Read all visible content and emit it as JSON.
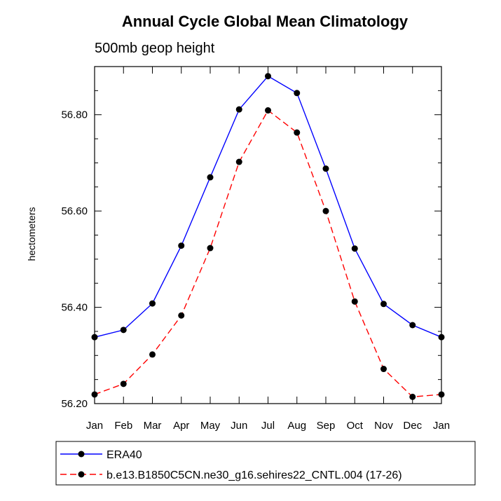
{
  "chart_data": {
    "type": "line",
    "title": "Annual Cycle Global Mean Climatology",
    "subtitle": "500mb geop height",
    "xlabel": "",
    "ylabel": "hectometers",
    "categories": [
      "Jan",
      "Feb",
      "Mar",
      "Apr",
      "May",
      "Jun",
      "Jul",
      "Aug",
      "Sep",
      "Oct",
      "Nov",
      "Dec",
      "Jan"
    ],
    "ylim": [
      56.2,
      56.9
    ],
    "yticks": [
      56.2,
      56.4,
      56.6,
      56.8
    ],
    "ytick_labels": [
      "56.20",
      "56.40",
      "56.60",
      "56.80"
    ],
    "grid": false,
    "legend_position": "bottom",
    "series": [
      {
        "name": "ERA40",
        "color": "#0000ff",
        "dash": "solid",
        "values": [
          56.338,
          56.353,
          56.408,
          56.528,
          56.67,
          56.811,
          56.88,
          56.845,
          56.688,
          56.522,
          56.407,
          56.363,
          56.338
        ]
      },
      {
        "name": "b.e13.B1850C5CN.ne30_g16.sehires22_CNTL.004 (17-26)",
        "color": "#ff0000",
        "dash": "dashed",
        "values": [
          56.219,
          56.241,
          56.302,
          56.383,
          56.523,
          56.702,
          56.809,
          56.763,
          56.6,
          56.412,
          56.272,
          56.214,
          56.219
        ]
      }
    ]
  }
}
